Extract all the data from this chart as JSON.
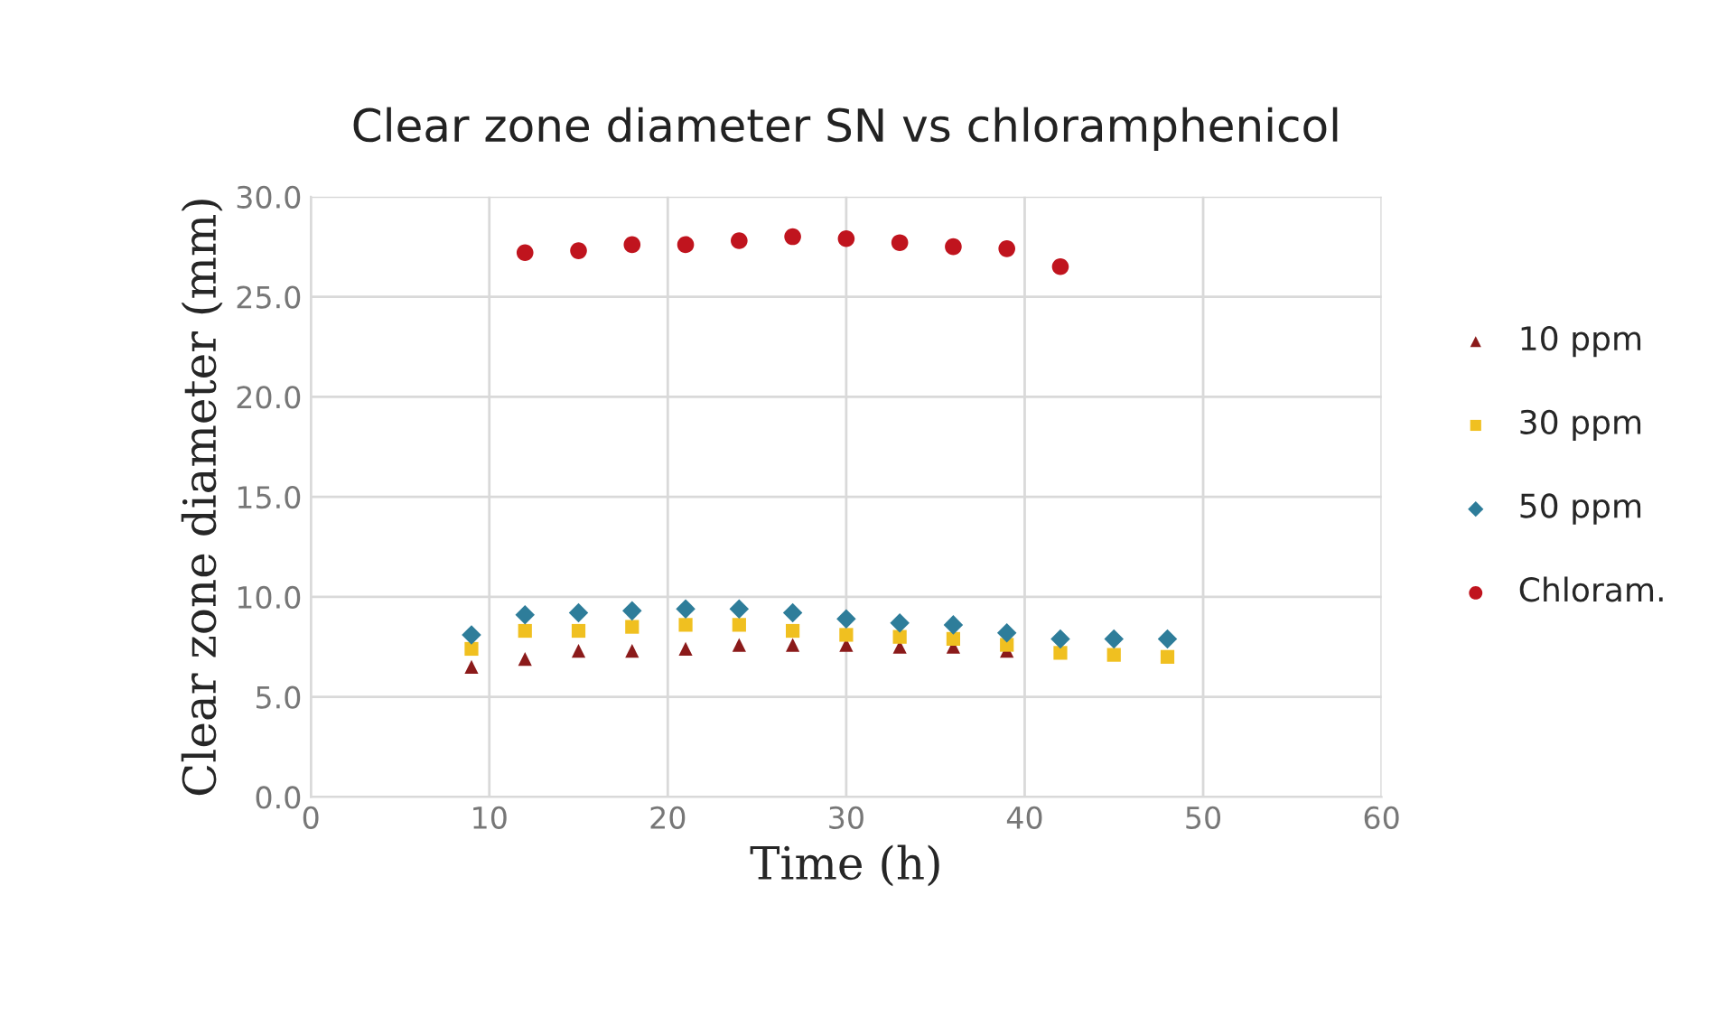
{
  "chart_data": {
    "type": "scatter",
    "title": "Clear zone diameter SN vs chloramphenicol",
    "xlabel": "Time (h)",
    "ylabel": "Clear zone diameter (mm)",
    "xlim": [
      0,
      60
    ],
    "xticks": [
      0,
      10,
      20,
      30,
      40,
      50,
      60
    ],
    "ylim": [
      0,
      30
    ],
    "yticks": [
      {
        "value": 0,
        "label": "0.0"
      },
      {
        "value": 5,
        "label": "5.0"
      },
      {
        "value": 10,
        "label": "10.0"
      },
      {
        "value": 15,
        "label": "15.0"
      },
      {
        "value": 20,
        "label": "20.0"
      },
      {
        "value": 25,
        "label": "25.0"
      },
      {
        "value": 30,
        "label": "30.0"
      }
    ],
    "grid": true,
    "legend": "right",
    "series": [
      {
        "name": "10 ppm",
        "color": "#8b1a1a",
        "marker": "triangle",
        "x": [
          9,
          12,
          15,
          18,
          21,
          24,
          27,
          30,
          33,
          36,
          39
        ],
        "values": [
          6.5,
          6.9,
          7.3,
          7.3,
          7.4,
          7.6,
          7.6,
          7.6,
          7.5,
          7.5,
          7.3
        ]
      },
      {
        "name": "30 ppm",
        "color": "#f0c020",
        "marker": "square",
        "x": [
          9,
          12,
          15,
          18,
          21,
          24,
          27,
          30,
          33,
          36,
          39,
          42,
          45,
          48
        ],
        "values": [
          7.4,
          8.3,
          8.3,
          8.5,
          8.6,
          8.6,
          8.3,
          8.1,
          8.0,
          7.9,
          7.6,
          7.2,
          7.1,
          7.0
        ]
      },
      {
        "name": "50 ppm",
        "color": "#2e7d9a",
        "marker": "diamond",
        "x": [
          9,
          12,
          15,
          18,
          21,
          24,
          27,
          30,
          33,
          36,
          39,
          42,
          45,
          48
        ],
        "values": [
          8.1,
          9.1,
          9.2,
          9.3,
          9.4,
          9.4,
          9.2,
          8.9,
          8.7,
          8.6,
          8.2,
          7.9,
          7.9,
          7.9
        ]
      },
      {
        "name": "Chloram.",
        "color": "#c0141e",
        "marker": "circle",
        "x": [
          12,
          15,
          18,
          21,
          24,
          27,
          30,
          33,
          36,
          39,
          42
        ],
        "values": [
          27.2,
          27.3,
          27.6,
          27.6,
          27.8,
          28.0,
          27.9,
          27.7,
          27.5,
          27.4,
          26.5
        ]
      }
    ]
  }
}
